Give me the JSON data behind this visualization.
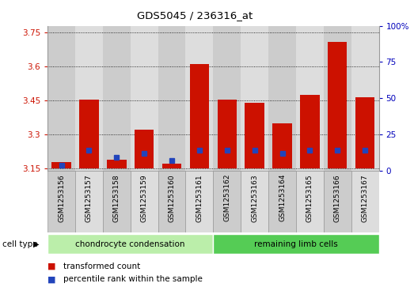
{
  "title": "GDS5045 / 236316_at",
  "samples": [
    "GSM1253156",
    "GSM1253157",
    "GSM1253158",
    "GSM1253159",
    "GSM1253160",
    "GSM1253161",
    "GSM1253162",
    "GSM1253163",
    "GSM1253164",
    "GSM1253165",
    "GSM1253166",
    "GSM1253167"
  ],
  "transformed_counts": [
    3.18,
    3.455,
    3.19,
    3.32,
    3.17,
    3.61,
    3.455,
    3.44,
    3.35,
    3.475,
    3.71,
    3.465
  ],
  "percentile_ranks": [
    4,
    14,
    9,
    12,
    7,
    14,
    14,
    14,
    12,
    14,
    14,
    14
  ],
  "ylim_left": [
    3.14,
    3.78
  ],
  "ylim_right": [
    0,
    100
  ],
  "yticks_left": [
    3.15,
    3.3,
    3.45,
    3.6,
    3.75
  ],
  "yticks_right": [
    0,
    25,
    50,
    75,
    100
  ],
  "ytick_labels_right": [
    "0",
    "25",
    "50",
    "75",
    "100%"
  ],
  "bar_color": "#cc1100",
  "percentile_color": "#2244bb",
  "groups": [
    {
      "label": "chondrocyte condensation",
      "start": 0,
      "end": 5,
      "color": "#bbeeaa"
    },
    {
      "label": "remaining limb cells",
      "start": 6,
      "end": 11,
      "color": "#55cc55"
    }
  ],
  "cell_type_label": "cell type",
  "legend_items": [
    {
      "label": "transformed count",
      "color": "#cc1100"
    },
    {
      "label": "percentile rank within the sample",
      "color": "#2244bb"
    }
  ],
  "baseline": 3.15,
  "bar_width": 0.7,
  "col_colors": [
    "#cccccc",
    "#dddddd"
  ],
  "plot_bg": "#ffffff",
  "border_color": "#999999"
}
